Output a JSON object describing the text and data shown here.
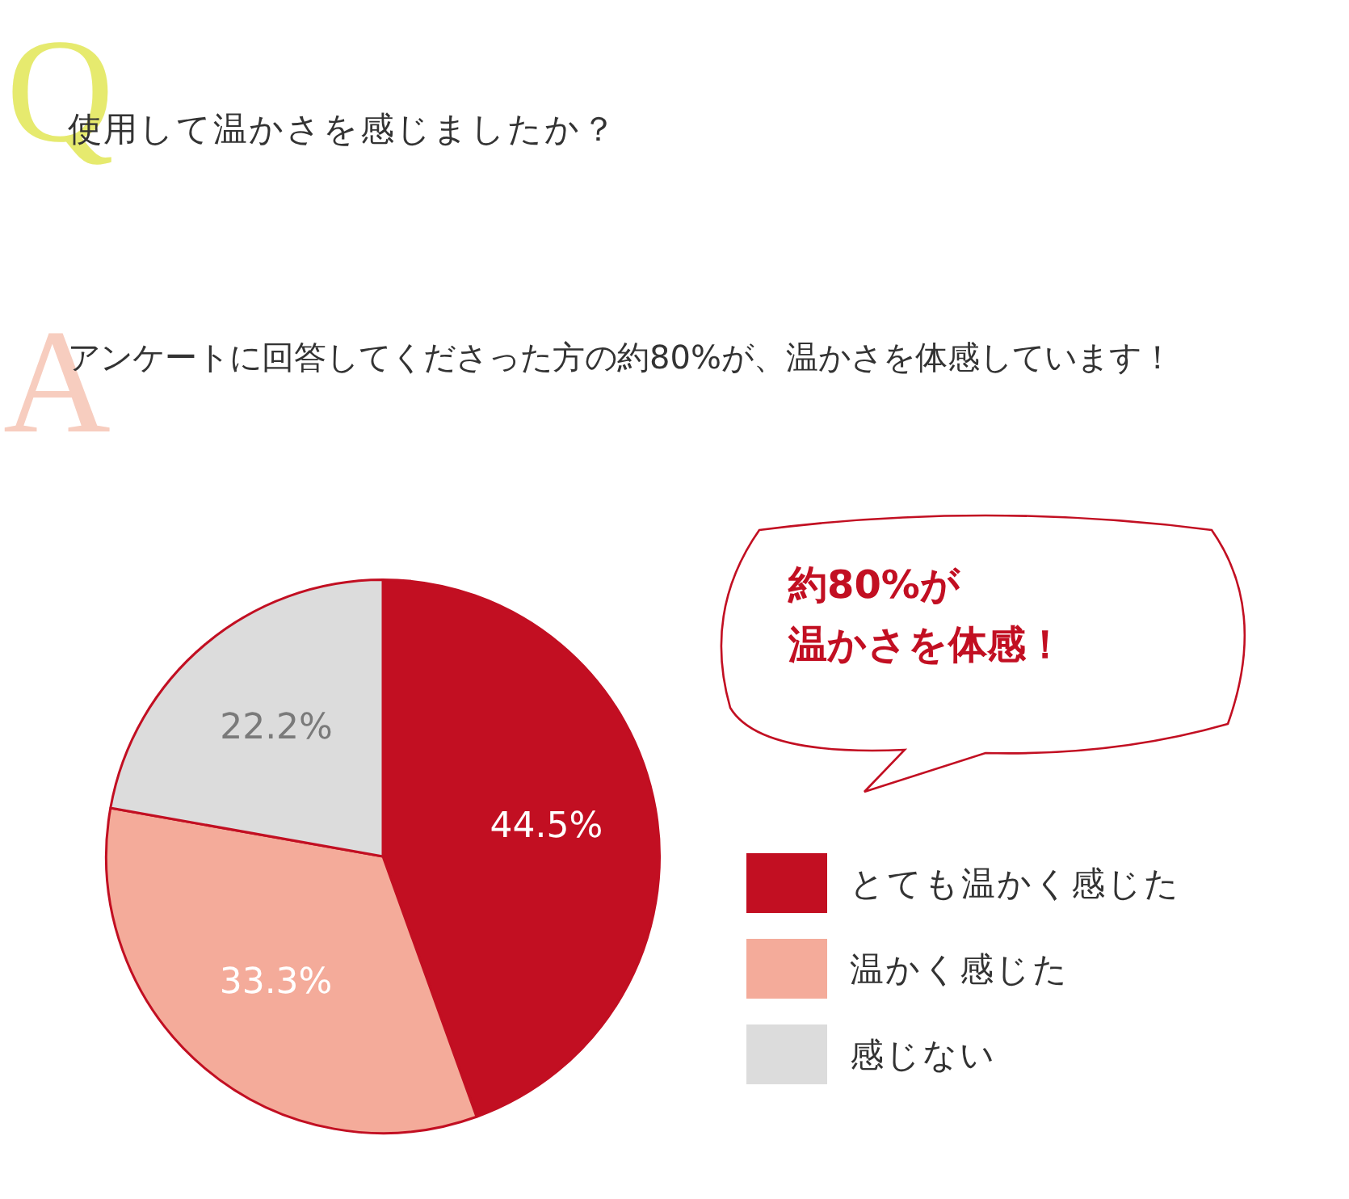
{
  "chart_data": {
    "type": "pie",
    "title": "使用して温かさを感じましたか？",
    "subtitle": "アンケートに回答してくださった方の約80%が、温かさを体感しています！",
    "annotations": [
      "Q",
      "A",
      "約80%が",
      "温かさを体感！"
    ],
    "categories": [
      "とても温かく感じた",
      "温かく感じた",
      "感じない"
    ],
    "values": [
      44.5,
      33.3,
      22.2
    ],
    "colors": [
      "#c20f22",
      "#f4ab9a",
      "#dcdcdc"
    ],
    "value_labels": [
      "44.5%",
      "33.3%",
      "22.2%"
    ],
    "legend": "right"
  }
}
